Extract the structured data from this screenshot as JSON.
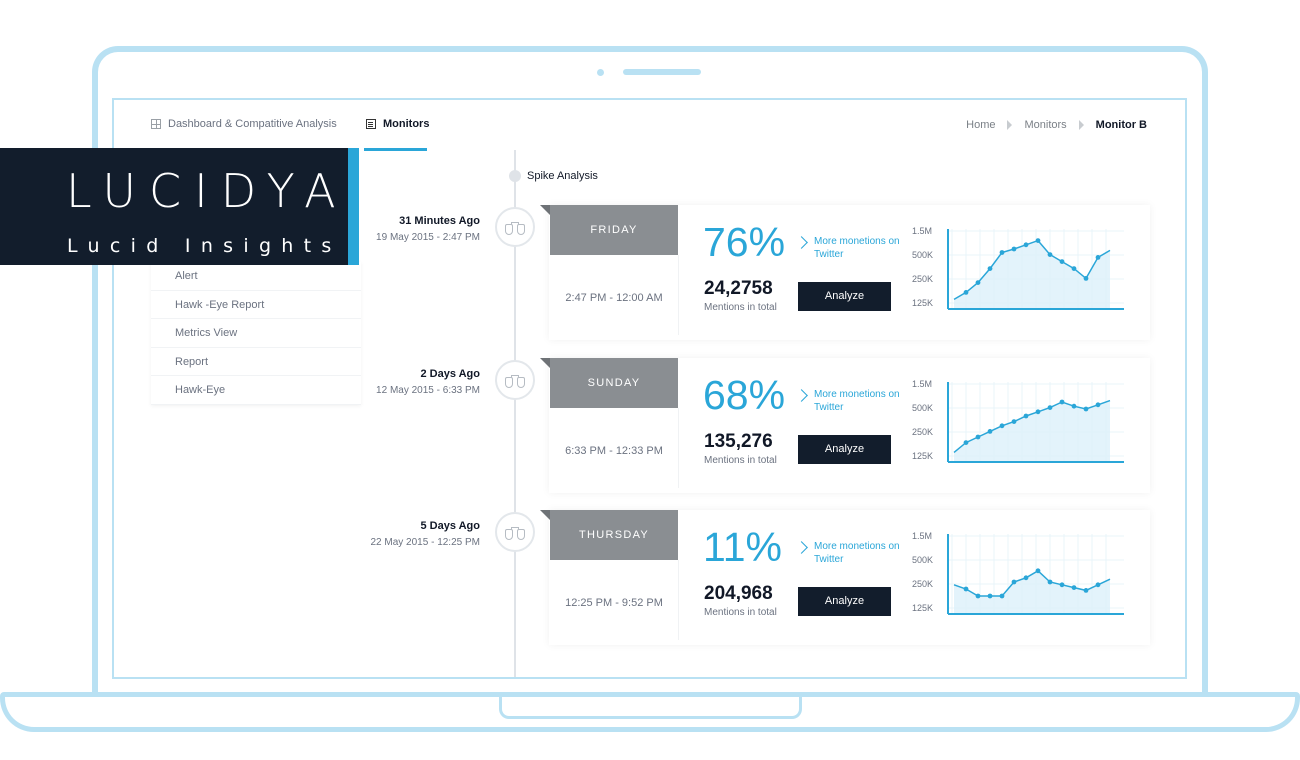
{
  "topnav": {
    "items": [
      {
        "label": "Dashboard & Compatitive Analysis",
        "icon": "grid-icon",
        "active": false
      },
      {
        "label": "Monitors",
        "icon": "document-icon",
        "active": true
      }
    ]
  },
  "breadcrumb": {
    "items": [
      "Home",
      "Monitors"
    ],
    "current": "Monitor B"
  },
  "sidebar": {
    "items": [
      {
        "label": "Alert"
      },
      {
        "label": "Hawk -Eye Report"
      },
      {
        "label": "Metrics View"
      },
      {
        "label": "Report"
      },
      {
        "label": "Hawk-Eye"
      }
    ]
  },
  "logo": {
    "main": "LUCIDYA",
    "sub": "Lucid Insights",
    "background": "#121d2c",
    "accent": "#2aa6d8"
  },
  "timeline": {
    "heading": "Spike Analysis"
  },
  "entries": [
    {
      "ago": "31 Minutes Ago",
      "date": "19 May 2015 - 2:47 PM",
      "day": "FRIDAY",
      "range": "2:47 PM - 12:00 AM",
      "percent": "76%",
      "more_link": "More monetions on Twitter",
      "count": "24,2758",
      "count_label": "Mentions in total",
      "button": "Analyze",
      "chart_data": {
        "type": "area",
        "y_tick_labels": [
          "1.5M",
          "500K",
          "250K",
          "125K"
        ],
        "values": [
          0.08,
          0.18,
          0.32,
          0.52,
          0.75,
          0.8,
          0.86,
          0.92,
          0.72,
          0.62,
          0.52,
          0.38,
          0.68,
          0.78
        ]
      }
    },
    {
      "ago": "2 Days Ago",
      "date": "12 May 2015 - 6:33 PM",
      "day": "SUNDAY",
      "range": "6:33 PM - 12:33 PM",
      "percent": "68%",
      "more_link": "More monetions on Twitter",
      "count": "135,276",
      "count_label": "Mentions in total",
      "button": "Analyze",
      "chart_data": {
        "type": "area",
        "y_tick_labels": [
          "1.5M",
          "500K",
          "250K",
          "125K"
        ],
        "values": [
          0.08,
          0.22,
          0.3,
          0.38,
          0.46,
          0.52,
          0.6,
          0.66,
          0.72,
          0.8,
          0.74,
          0.7,
          0.76,
          0.82
        ]
      }
    },
    {
      "ago": "5 Days Ago",
      "date": "22 May 2015 - 12:25 PM",
      "day": "THURSDAY",
      "range": "12:25 PM - 9:52 PM",
      "percent": "11%",
      "more_link": "More monetions on Twitter",
      "count": "204,968",
      "count_label": "Mentions in total",
      "button": "Analyze",
      "chart_data": {
        "type": "area",
        "y_tick_labels": [
          "1.5M",
          "500K",
          "250K",
          "125K"
        ],
        "values": [
          0.36,
          0.3,
          0.2,
          0.2,
          0.2,
          0.4,
          0.46,
          0.56,
          0.4,
          0.36,
          0.32,
          0.28,
          0.36,
          0.44
        ]
      }
    }
  ],
  "colors": {
    "frame": "#b9e1f3",
    "accent": "#2aa6d8",
    "dark": "#121d2c",
    "day_tab": "#8a8e92"
  }
}
